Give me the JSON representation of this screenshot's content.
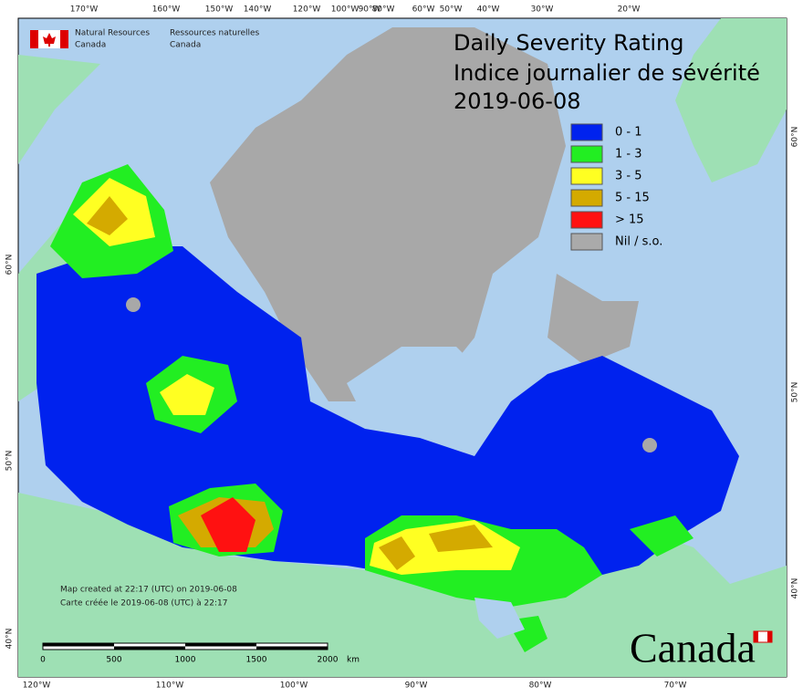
{
  "header": {
    "org_en": [
      "Natural Resources",
      "Canada"
    ],
    "org_fr": [
      "Ressources naturelles",
      "Canada"
    ],
    "title_en": "Daily Severity Rating",
    "title_fr": "Indice journalier de sévérité",
    "date": "2019-06-08"
  },
  "legend": [
    {
      "label": "0 - 1",
      "color": "#0022ee"
    },
    {
      "label": "1 - 3",
      "color": "#22ee22"
    },
    {
      "label": "3 - 5",
      "color": "#ffff22"
    },
    {
      "label": "5 - 15",
      "color": "#d4aa00"
    },
    {
      "label": "> 15",
      "color": "#ff1111"
    },
    {
      "label": "Nil / s.o.",
      "color": "#aaaaaa"
    }
  ],
  "graticule": {
    "top": [
      "170°W",
      "160°W",
      "150°W",
      "140°W",
      "120°W",
      "100°W",
      "90°W",
      "80°W",
      "60°W",
      "50°W",
      "40°W",
      "30°W",
      "20°W"
    ],
    "bottom": [
      "120°W",
      "110°W",
      "100°W",
      "90°W",
      "80°W",
      "70°W"
    ],
    "left": [
      "60°N",
      "50°N",
      "40°N"
    ],
    "right": [
      "60°N",
      "50°N",
      "40°N"
    ]
  },
  "footer": {
    "created_en": "Map created at 22:17 (UTC) on 2019-06-08",
    "created_fr": "Carte créée le 2019-06-08 (UTC) à 22:17",
    "scale": [
      "0",
      "500",
      "1000",
      "1500",
      "2000"
    ],
    "scale_unit": "km",
    "wordmark": "Canada"
  }
}
